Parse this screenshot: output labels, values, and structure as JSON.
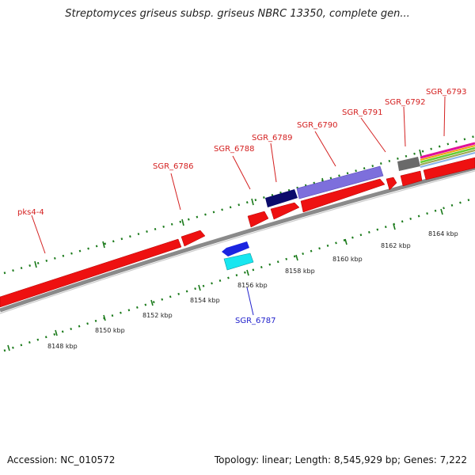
{
  "title": "Streptomyces griseus subsp. griseus NBRC 13350, complete gen...",
  "footer": {
    "accession": "Accession: NC_010572",
    "summary": "Topology: linear; Length: 8,545,929 bp; Genes: 7,222"
  },
  "genes": {
    "top": [
      "pks4-4",
      "SGR_6786",
      "SGR_6788",
      "SGR_6789",
      "SGR_6790",
      "SGR_6791",
      "SGR_6792",
      "SGR_6793"
    ],
    "bottom": [
      "SGR_6787"
    ]
  },
  "scale": {
    "inner": [
      "8148 kbp",
      "8150 kbp",
      "8152 kbp",
      "8154 kbp",
      "8156 kbp",
      "8158 kbp",
      "8160 kbp",
      "8162 kbp",
      "8164 kbp"
    ]
  },
  "colors": {
    "cds_forward": "#ee1111",
    "backbone": "#8a8a8a",
    "ticks": "#1a7a1a",
    "label_top": "#d42020",
    "label_bottom": "#2222cc"
  }
}
